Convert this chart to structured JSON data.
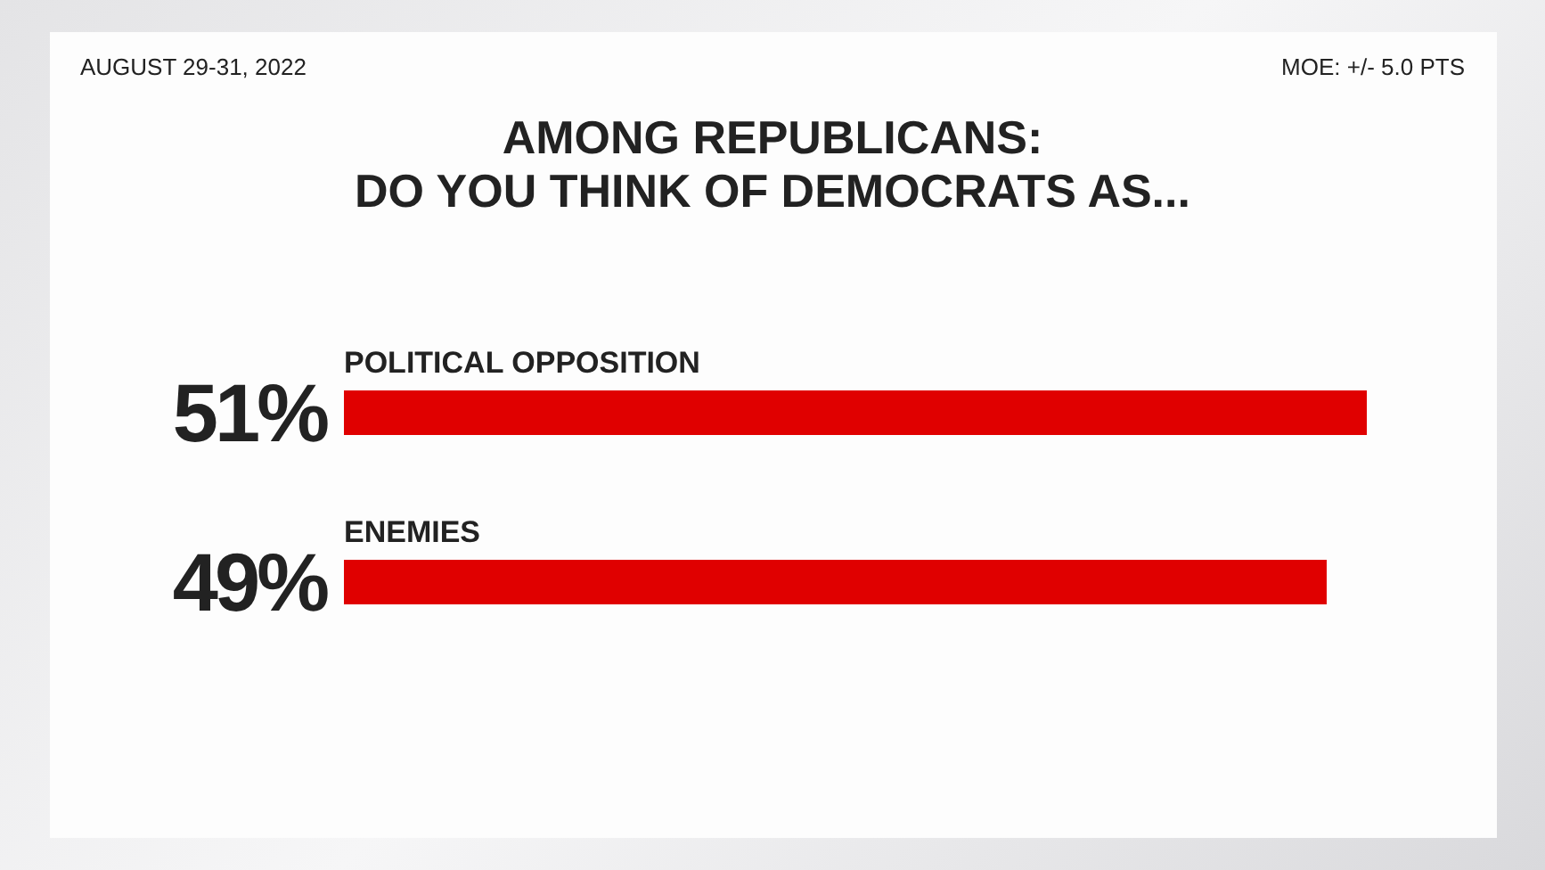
{
  "chart_data": {
    "type": "bar",
    "orientation": "horizontal",
    "title": "AMONG REPUBLICANS:\nDO YOU THINK OF DEMOCRATS AS...",
    "categories": [
      "POLITICAL OPPOSITION",
      "ENEMIES"
    ],
    "values": [
      51,
      49
    ],
    "value_labels": [
      "51%",
      "49%"
    ],
    "color": "#e00000",
    "tick_labels": false,
    "annotations": [
      "AUGUST 29-31, 2022",
      "MOE: +/- 5.0 PTS"
    ]
  }
}
